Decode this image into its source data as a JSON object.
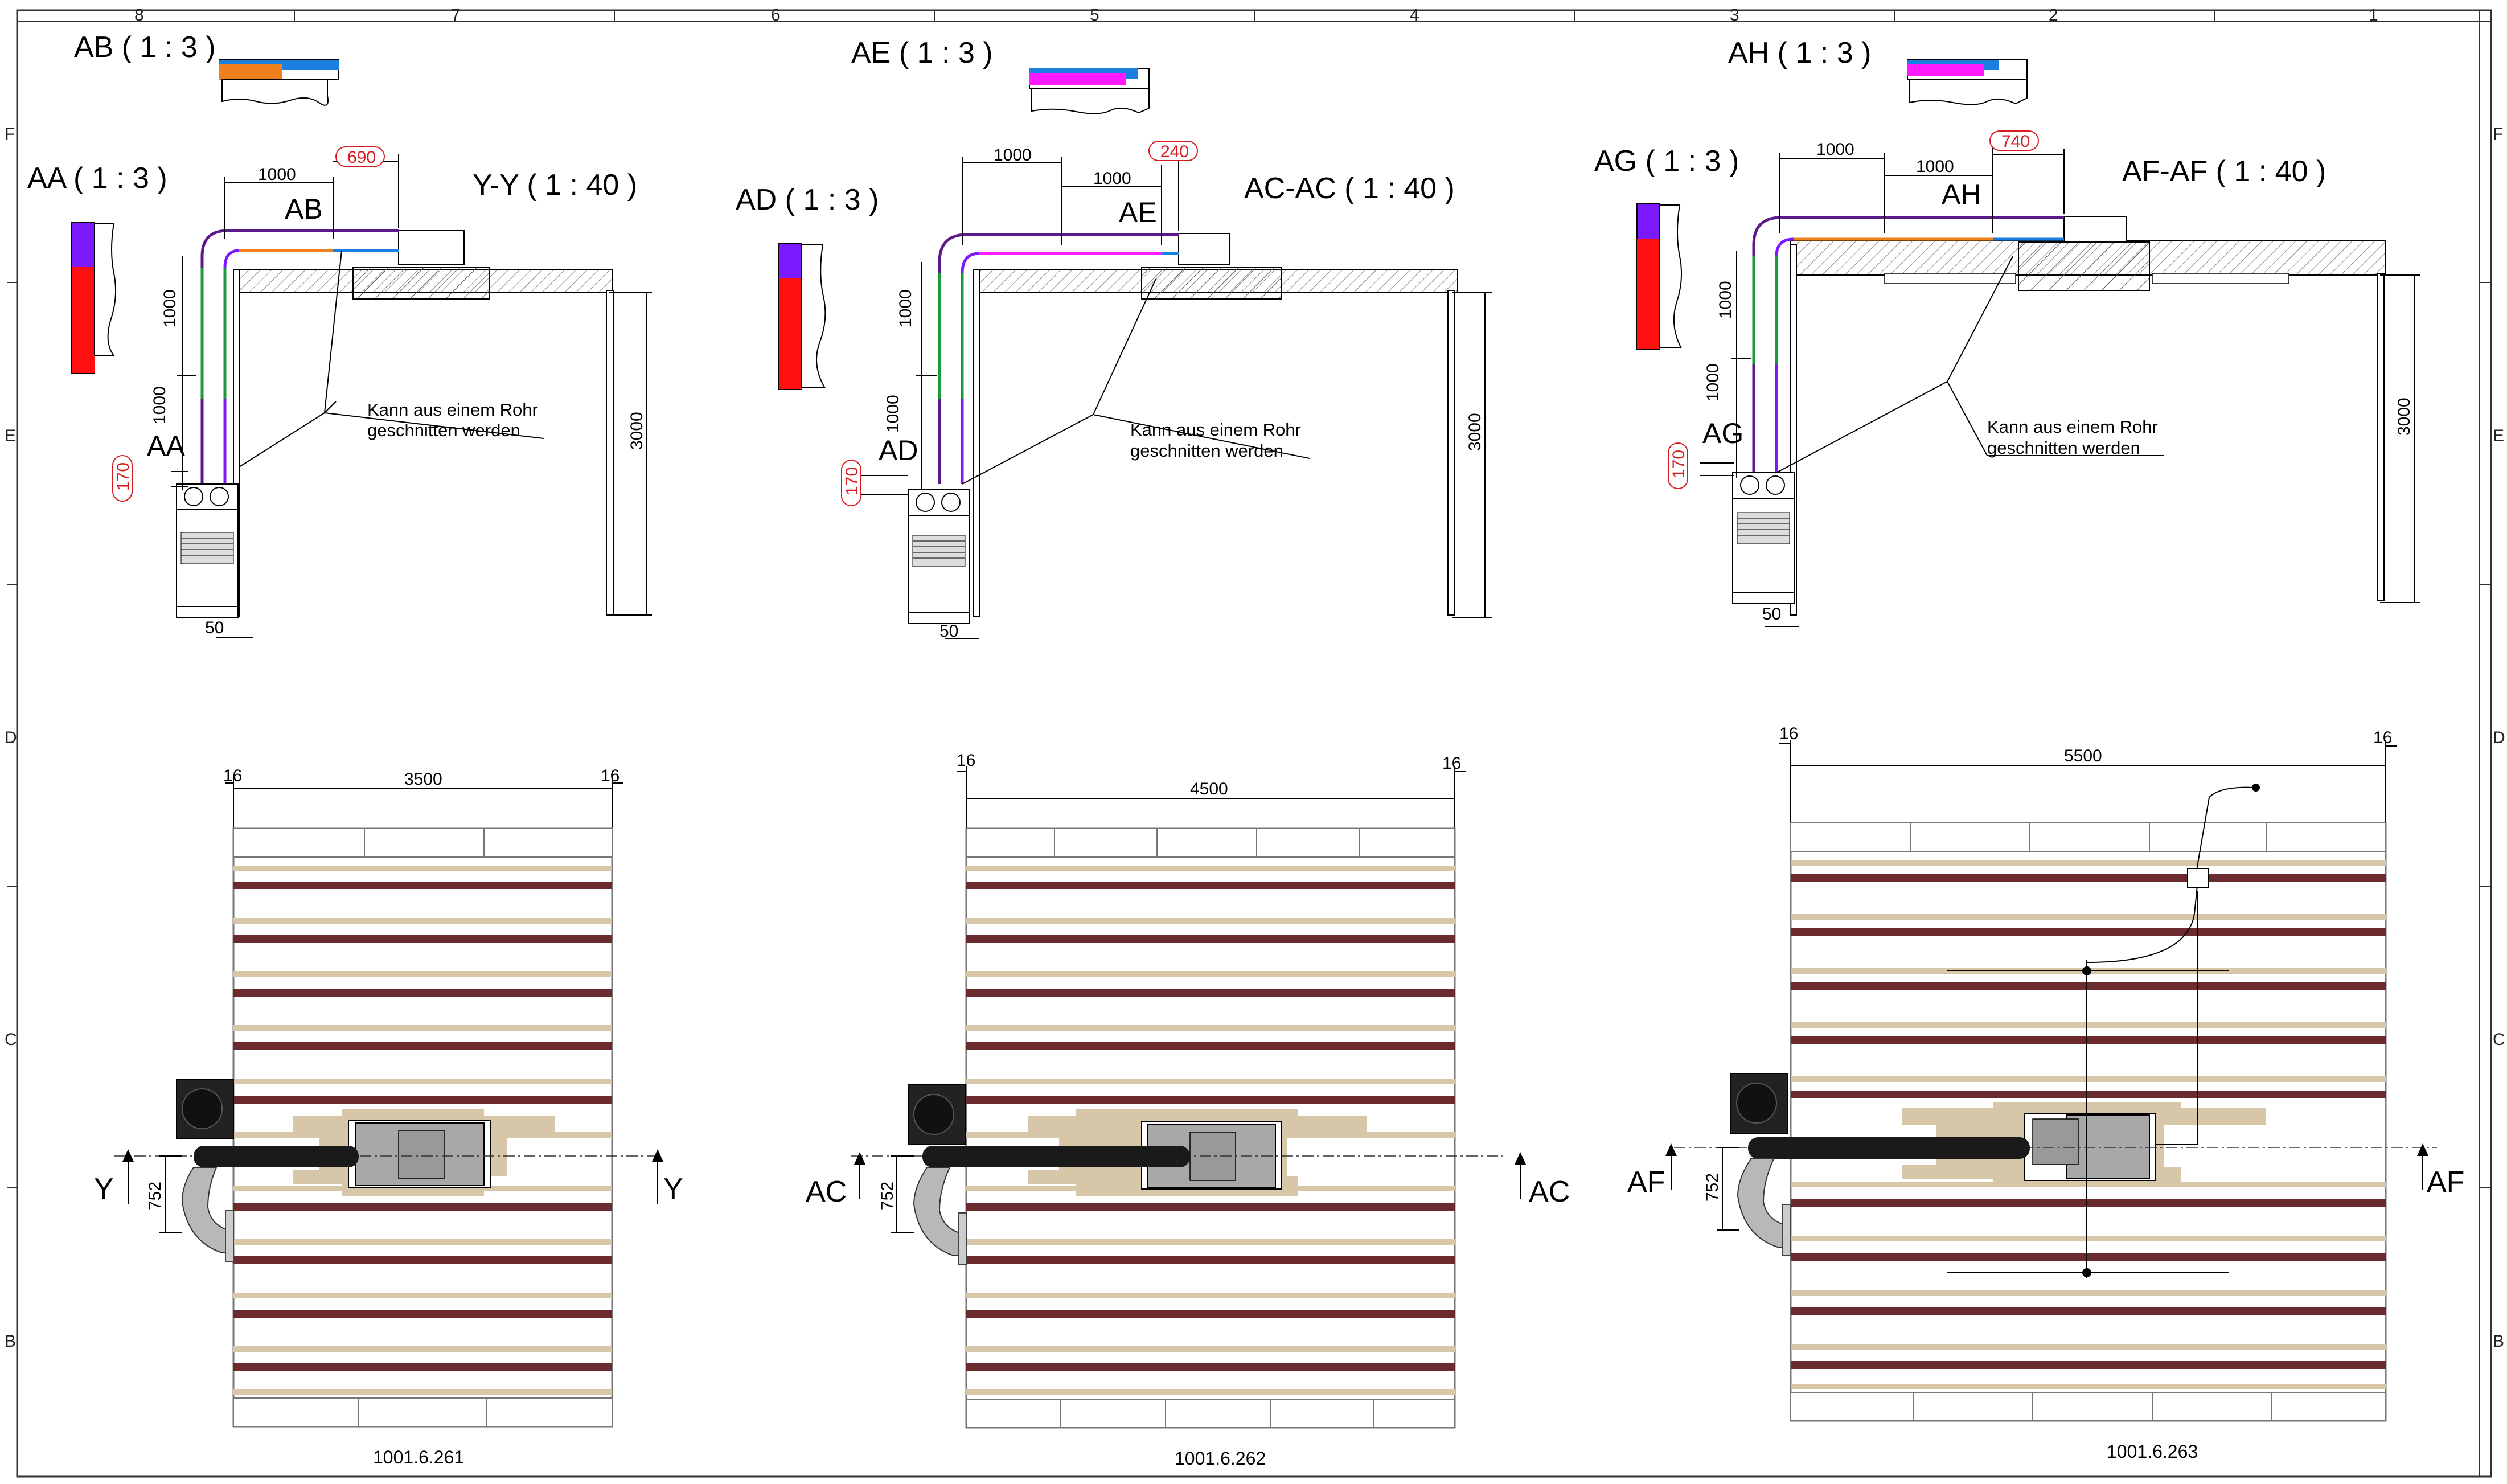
{
  "sheet": {
    "column_labels": [
      "8",
      "7",
      "6",
      "5",
      "4",
      "3",
      "2",
      "1"
    ],
    "row_labels": [
      "F",
      "E",
      "D",
      "C",
      "B"
    ]
  },
  "colors": {
    "orange": "#f07f1e",
    "blue": "#1a7fe0",
    "magenta": "#ff1aff",
    "purple": "#7c1aff",
    "red": "#ff1010",
    "green": "#1a9a3a",
    "brown_batten": "#6b2a2e",
    "beige_wood": "#d8c6a8",
    "pipe_black": "#1a1a1a",
    "box_gray": "#a8a8a8",
    "dim_red": "#d71920"
  },
  "views": [
    {
      "detail_top": "AB ( 1 : 3 )",
      "detail_side": "AA ( 1 : 3 )",
      "section_title": "Y-Y ( 1 : 40 )",
      "d_1000_h": "1000",
      "d_690": "690",
      "label_ab": "AB",
      "d_1000_v1": "1000",
      "d_1000_v2": "1000",
      "label_aa": "AA",
      "d_170": "170",
      "note_line1": "Kann aus einem Rohr",
      "note_line2": "geschnitten werden",
      "d_3000": "3000",
      "d_50": "50",
      "plan_d16_l": "16",
      "plan_width": "3500",
      "plan_d16_r": "16",
      "cut_l": "Y",
      "cut_r": "Y",
      "d_752": "752",
      "drawing_no": "1001.6.261"
    },
    {
      "detail_top": "AE ( 1 : 3 )",
      "detail_side": "AD ( 1 : 3 )",
      "section_title": "AC-AC ( 1 : 40 )",
      "d_1000_h": "1000",
      "d_1000_h2": "1000",
      "d_240": "240",
      "label_ae": "AE",
      "d_1000_v1": "1000",
      "d_1000_v2": "1000",
      "label_ad": "AD",
      "d_170": "170",
      "note_line1": "Kann aus einem Rohr",
      "note_line2": "geschnitten werden",
      "d_3000": "3000",
      "d_50": "50",
      "plan_d16_l": "16",
      "plan_width": "4500",
      "plan_d16_r": "16",
      "cut_l": "AC",
      "cut_r": "AC",
      "d_752": "752",
      "drawing_no": "1001.6.262"
    },
    {
      "detail_top": "AH ( 1 : 3 )",
      "detail_side": "AG ( 1 : 3 )",
      "section_title": "AF-AF ( 1 : 40 )",
      "d_1000_h": "1000",
      "d_1000_h2": "1000",
      "d_740": "740",
      "label_ah": "AH",
      "d_1000_v1": "1000",
      "d_1000_v2": "1000",
      "label_ag": "AG",
      "d_170": "170",
      "note_line1": "Kann aus einem Rohr",
      "note_line2": "geschnitten werden",
      "d_3000": "3000",
      "d_50": "50",
      "plan_d16_l": "16",
      "plan_width": "5500",
      "plan_d16_r": "16",
      "cut_l": "AF",
      "cut_r": "AF",
      "d_752": "752",
      "drawing_no": "1001.6.263"
    }
  ]
}
